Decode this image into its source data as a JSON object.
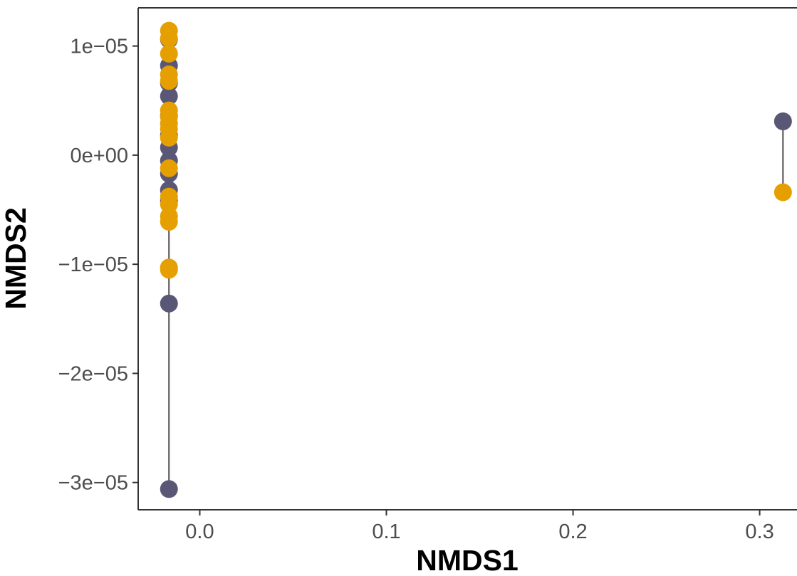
{
  "chart_data": {
    "type": "scatter",
    "title": "",
    "xlabel": "NMDS1",
    "ylabel": "NMDS2",
    "xlim": [
      -0.033,
      0.32
    ],
    "ylim": [
      -3.25e-05,
      1.35e-05
    ],
    "x_ticks": [
      0.0,
      0.1,
      0.2,
      0.3
    ],
    "x_tick_labels": [
      "0.0",
      "0.1",
      "0.2",
      "0.3"
    ],
    "y_ticks": [
      -3e-05,
      -2e-05,
      -1e-05,
      0,
      1e-05
    ],
    "y_tick_labels": [
      "−3e−05",
      "−2e−05",
      "−1e−05",
      "0e+00",
      "1e−05"
    ],
    "grid": false,
    "legend": "none",
    "colors": {
      "group_1": "#595775",
      "group_2": "#E69F00",
      "segment": "#000000"
    },
    "series": [
      {
        "color_key": "group_1",
        "x": [
          -0.0165,
          -0.0165,
          -0.0165,
          -0.0165,
          -0.0165,
          -0.0165,
          -0.0165,
          -0.0165,
          -0.0165,
          -0.0165,
          -0.0165,
          -0.0165,
          -0.0165,
          0.3125
        ],
        "y": [
          1.06e-05,
          8.2e-06,
          6.6e-06,
          5.4e-06,
          3.6e-06,
          1.8e-06,
          7e-07,
          -5e-07,
          -1.7e-06,
          -3.2e-06,
          -4.2e-06,
          -1.36e-05,
          -3.06e-05,
          3.1e-06
        ]
      },
      {
        "color_key": "group_2",
        "x": [
          -0.0165,
          -0.0165,
          -0.0165,
          -0.0165,
          -0.0165,
          -0.0165,
          -0.0165,
          -0.0165,
          -0.0165,
          -0.0165,
          -0.0165,
          -0.0165,
          -0.0165,
          -0.0165,
          -0.0165,
          -0.0165,
          -0.0165,
          0.3125
        ],
        "y": [
          1.14e-05,
          1.07e-05,
          9.3e-06,
          7.4e-06,
          6.8e-06,
          4.1e-06,
          3.5e-06,
          2.9e-06,
          2.4e-06,
          1.6e-06,
          -1.2e-06,
          -3.8e-06,
          -4.5e-06,
          -5.6e-06,
          -6.1e-06,
          -1.05e-05,
          -1.03e-05,
          -3.4e-06
        ]
      }
    ],
    "segments": [
      {
        "x": -0.0165,
        "y_from": -3.06e-05,
        "y_to": 1.14e-05
      },
      {
        "x": 0.3125,
        "y_from": -3.4e-06,
        "y_to": 3.1e-06
      }
    ]
  }
}
